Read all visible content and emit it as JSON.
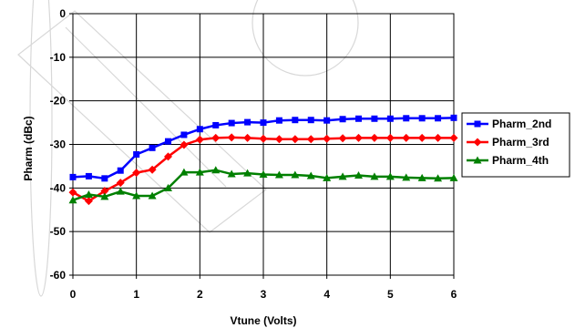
{
  "chart_data": {
    "type": "line",
    "title": "",
    "xlabel": "Vtune (Volts)",
    "ylabel": "Pharm (dBc)",
    "xlim": [
      0,
      6
    ],
    "ylim": [
      -60,
      0
    ],
    "x_ticks": [
      "0",
      "1",
      "2",
      "3",
      "4",
      "5",
      "6"
    ],
    "y_ticks": [
      "0",
      "-10",
      "-20",
      "-30",
      "-40",
      "-50",
      "-60"
    ],
    "grid": true,
    "legend_position": "right",
    "x": [
      0,
      0.25,
      0.5,
      0.75,
      1.0,
      1.25,
      1.5,
      1.75,
      2.0,
      2.25,
      2.5,
      2.75,
      3.0,
      3.25,
      3.5,
      3.75,
      4.0,
      4.25,
      4.5,
      4.75,
      5.0,
      5.25,
      5.5,
      5.75,
      6.0
    ],
    "series": [
      {
        "name": "Pharm_2nd",
        "color": "#0000ff",
        "marker": "square",
        "values": [
          -37.5,
          -37.3,
          -37.8,
          -36.0,
          -32.3,
          -30.8,
          -29.3,
          -27.8,
          -26.5,
          -25.6,
          -25.1,
          -24.9,
          -25.0,
          -24.5,
          -24.4,
          -24.4,
          -24.5,
          -24.2,
          -24.1,
          -24.1,
          -24.1,
          -24.0,
          -24.0,
          -24.0,
          -23.9
        ]
      },
      {
        "name": "Pharm_3rd",
        "color": "#ff0000",
        "marker": "diamond",
        "values": [
          -41.0,
          -43.0,
          -40.7,
          -38.8,
          -36.5,
          -35.8,
          -32.8,
          -30.1,
          -28.9,
          -28.5,
          -28.4,
          -28.5,
          -28.7,
          -28.8,
          -28.8,
          -28.8,
          -28.7,
          -28.6,
          -28.5,
          -28.5,
          -28.5,
          -28.5,
          -28.5,
          -28.5,
          -28.5
        ]
      },
      {
        "name": "Pharm_4th",
        "color": "#008000",
        "marker": "triangle",
        "values": [
          -42.8,
          -41.5,
          -42.0,
          -40.8,
          -41.8,
          -41.8,
          -40.0,
          -36.4,
          -36.4,
          -35.9,
          -36.8,
          -36.6,
          -36.9,
          -37.0,
          -37.0,
          -37.2,
          -37.7,
          -37.4,
          -37.1,
          -37.4,
          -37.4,
          -37.6,
          -37.7,
          -37.8,
          -37.7
        ]
      }
    ]
  }
}
